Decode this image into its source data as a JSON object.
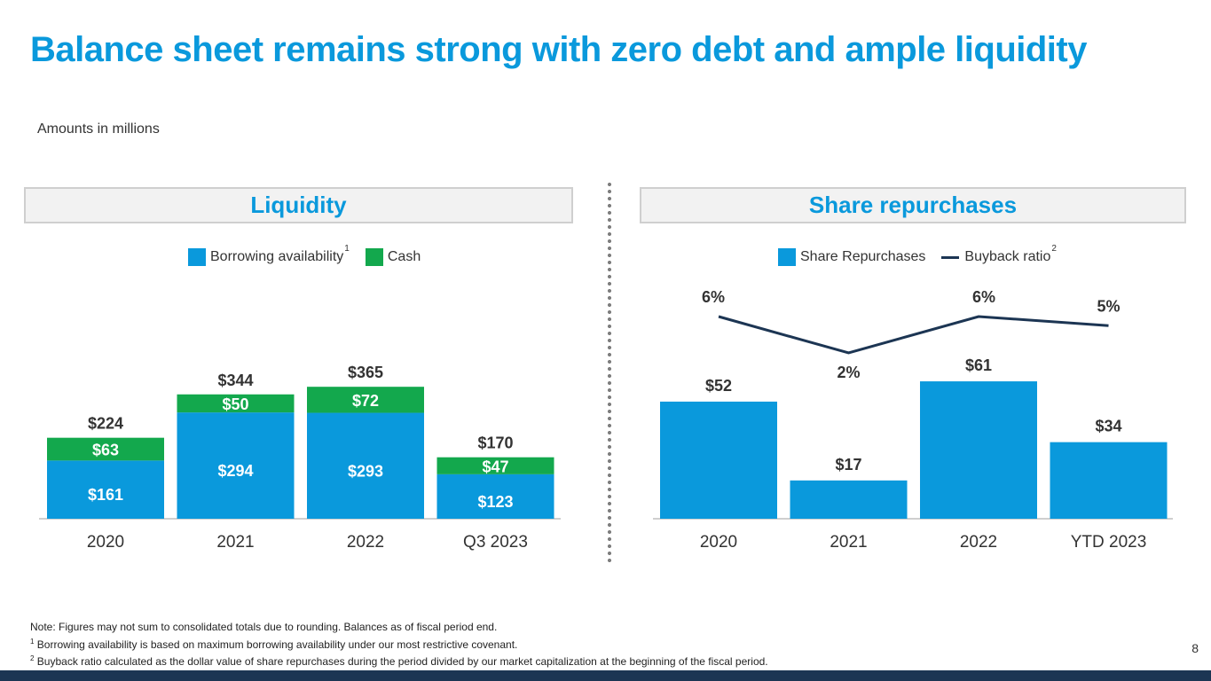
{
  "slide": {
    "title": "Balance sheet remains strong with zero debt and ample liquidity",
    "subtitle": "Amounts in millions",
    "page_number": "8"
  },
  "colors": {
    "accent": "#0a99dc",
    "bar_blue": "#0a99dc",
    "bar_green": "#13a84d",
    "line_navy": "#1c3553"
  },
  "footnotes": {
    "note": "Note: Figures may not sum to consolidated totals due to rounding. Balances as of fiscal period end.",
    "fn1_marker": "1",
    "fn1": "Borrowing availability is based on maximum borrowing availability under our most restrictive covenant.",
    "fn2_marker": "2",
    "fn2": "Buyback ratio calculated as the dollar value of share repurchases during the period divided by our market capitalization at the beginning of the fiscal period."
  },
  "chart_data": [
    {
      "type": "bar",
      "stacked": true,
      "title": "Liquidity",
      "categories": [
        "2020",
        "2021",
        "2022",
        "Q3 2023"
      ],
      "series": [
        {
          "name": "Borrowing availability",
          "superscript": "1",
          "color": "#0a99dc",
          "values": [
            161,
            294,
            293,
            123
          ],
          "labels": [
            "$161",
            "$294",
            "$293",
            "$123"
          ]
        },
        {
          "name": "Cash",
          "color": "#13a84d",
          "values": [
            63,
            50,
            72,
            47
          ],
          "labels": [
            "$63",
            "$50",
            "$72",
            "$47"
          ]
        }
      ],
      "totals": [
        224,
        344,
        365,
        170
      ],
      "total_labels": [
        "$224",
        "$344",
        "$365",
        "$170"
      ],
      "ylim": [
        0,
        400
      ],
      "grid": false,
      "legend": "top-center"
    },
    {
      "type": "bar",
      "title": "Share repurchases",
      "categories": [
        "2020",
        "2021",
        "2022",
        "YTD 2023"
      ],
      "series": [
        {
          "name": "Share Repurchases",
          "type": "bar",
          "color": "#0a99dc",
          "values": [
            52,
            17,
            61,
            34
          ],
          "labels": [
            "$52",
            "$17",
            "$61",
            "$34"
          ]
        },
        {
          "name": "Buyback ratio",
          "superscript": "2",
          "type": "line",
          "color": "#1c3553",
          "values": [
            6,
            2,
            6,
            5
          ],
          "labels": [
            "6%",
            "2%",
            "6%",
            "5%"
          ]
        }
      ],
      "ylim": [
        0,
        100
      ],
      "grid": false,
      "legend": "top-center"
    }
  ]
}
